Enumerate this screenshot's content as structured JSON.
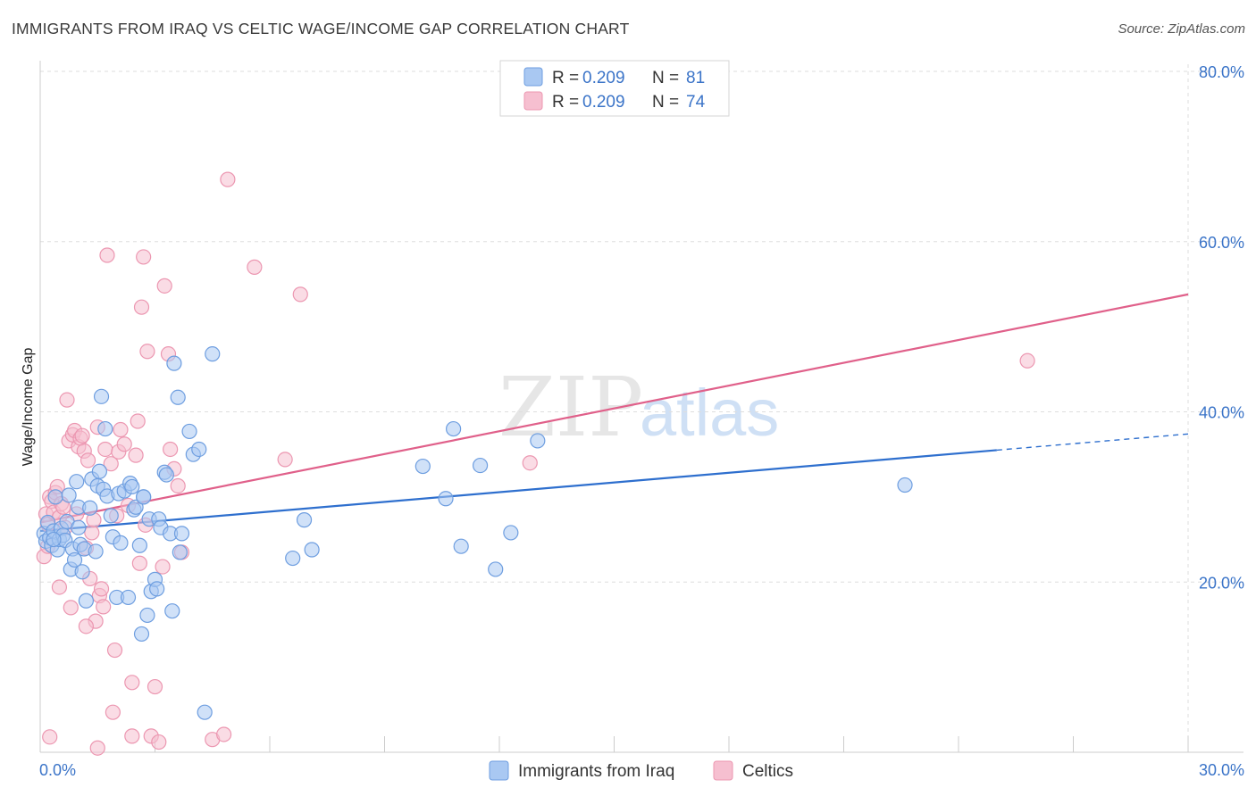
{
  "header": {
    "title": "IMMIGRANTS FROM IRAQ VS CELTIC WAGE/INCOME GAP CORRELATION CHART",
    "source": "Source: ZipAtlas.com"
  },
  "watermark": {
    "zip": "ZIP",
    "atlas": "atlas"
  },
  "legend": {
    "r_label": "R =",
    "n_label": "N =",
    "entries": [
      {
        "r": "0.209",
        "n": "81"
      },
      {
        "r": "0.209",
        "n": "74"
      }
    ]
  },
  "colors": {
    "iraq_fill": "#a9c8f2",
    "iraq_stroke": "#6e9ee0",
    "iraq_line": "#2e6fce",
    "celtic_fill": "#f6bfd0",
    "celtic_stroke": "#ec97b1",
    "celtic_line": "#e0608a",
    "tick_text": "#3b74c8",
    "grid": "#dedede"
  },
  "chart_data": {
    "type": "scatter",
    "title": "IMMIGRANTS FROM IRAQ VS CELTIC WAGE/INCOME GAP CORRELATION CHART",
    "xlabel": "",
    "ylabel": "Wage/Income Gap",
    "xlim": [
      0,
      30
    ],
    "ylim": [
      0,
      80
    ],
    "x_tick_labels": [
      "0.0%",
      "30.0%"
    ],
    "y_ticks": [
      20,
      40,
      60,
      80
    ],
    "y_tick_labels": [
      "20.0%",
      "40.0%",
      "60.0%",
      "80.0%"
    ],
    "grid": true,
    "legend_position": "top-center",
    "series": [
      {
        "name": "Immigrants from Iraq",
        "trend": {
          "x": [
            0,
            25,
            30
          ],
          "y": [
            26.0,
            35.5,
            37.4
          ],
          "dashed_from": 25
        },
        "points": [
          [
            0.1,
            25.7
          ],
          [
            0.15,
            24.8
          ],
          [
            0.2,
            27.0
          ],
          [
            0.25,
            25.2
          ],
          [
            0.3,
            24.3
          ],
          [
            0.35,
            26.0
          ],
          [
            0.4,
            30.0
          ],
          [
            0.45,
            23.8
          ],
          [
            0.5,
            25.0
          ],
          [
            0.55,
            26.3
          ],
          [
            0.6,
            25.5
          ],
          [
            0.65,
            24.9
          ],
          [
            0.7,
            27.1
          ],
          [
            0.75,
            30.2
          ],
          [
            0.8,
            21.5
          ],
          [
            0.85,
            23.9
          ],
          [
            0.9,
            22.6
          ],
          [
            0.95,
            31.8
          ],
          [
            1.0,
            28.8
          ],
          [
            1.05,
            24.4
          ],
          [
            1.1,
            21.2
          ],
          [
            1.15,
            23.9
          ],
          [
            1.2,
            17.8
          ],
          [
            1.3,
            28.7
          ],
          [
            1.35,
            32.1
          ],
          [
            1.45,
            23.6
          ],
          [
            1.5,
            31.3
          ],
          [
            1.55,
            33.0
          ],
          [
            1.6,
            41.8
          ],
          [
            1.65,
            30.9
          ],
          [
            1.7,
            38.0
          ],
          [
            1.75,
            30.1
          ],
          [
            1.85,
            27.8
          ],
          [
            1.9,
            25.3
          ],
          [
            2.0,
            18.2
          ],
          [
            2.05,
            30.4
          ],
          [
            2.1,
            24.6
          ],
          [
            2.2,
            30.7
          ],
          [
            2.3,
            18.2
          ],
          [
            2.35,
            31.6
          ],
          [
            2.4,
            31.2
          ],
          [
            2.45,
            28.5
          ],
          [
            2.5,
            28.8
          ],
          [
            2.6,
            24.3
          ],
          [
            2.65,
            13.9
          ],
          [
            2.7,
            30.0
          ],
          [
            2.8,
            16.1
          ],
          [
            2.85,
            27.4
          ],
          [
            2.9,
            18.9
          ],
          [
            3.0,
            20.3
          ],
          [
            3.05,
            19.2
          ],
          [
            3.1,
            27.4
          ],
          [
            3.15,
            26.4
          ],
          [
            3.25,
            32.9
          ],
          [
            3.3,
            32.6
          ],
          [
            3.4,
            25.7
          ],
          [
            3.45,
            16.6
          ],
          [
            3.5,
            45.7
          ],
          [
            3.6,
            41.7
          ],
          [
            3.65,
            23.5
          ],
          [
            3.7,
            25.7
          ],
          [
            3.9,
            37.7
          ],
          [
            4.0,
            35.0
          ],
          [
            4.15,
            35.6
          ],
          [
            4.5,
            46.8
          ],
          [
            4.3,
            4.7
          ],
          [
            6.6,
            22.8
          ],
          [
            6.9,
            27.3
          ],
          [
            7.1,
            23.8
          ],
          [
            10.0,
            33.6
          ],
          [
            10.6,
            29.8
          ],
          [
            10.8,
            38.0
          ],
          [
            11.0,
            24.2
          ],
          [
            11.5,
            33.7
          ],
          [
            11.9,
            21.5
          ],
          [
            12.3,
            25.8
          ],
          [
            13.0,
            36.6
          ],
          [
            22.6,
            31.4
          ],
          [
            1.0,
            26.4
          ],
          [
            2.7,
            30.0
          ],
          [
            0.35,
            25.0
          ]
        ]
      },
      {
        "name": "Celtics",
        "trend": {
          "x": [
            0,
            30
          ],
          "y": [
            27.0,
            53.8
          ],
          "dashed_from": null
        },
        "points": [
          [
            0.1,
            23.0
          ],
          [
            0.15,
            28.0
          ],
          [
            0.2,
            26.8
          ],
          [
            0.25,
            30.0
          ],
          [
            0.3,
            29.5
          ],
          [
            0.35,
            28.2
          ],
          [
            0.4,
            30.5
          ],
          [
            0.45,
            31.2
          ],
          [
            0.5,
            27.6
          ],
          [
            0.55,
            29.2
          ],
          [
            0.6,
            28.8
          ],
          [
            0.65,
            26.4
          ],
          [
            0.7,
            41.4
          ],
          [
            0.75,
            36.6
          ],
          [
            0.8,
            17.0
          ],
          [
            0.85,
            37.3
          ],
          [
            0.9,
            37.8
          ],
          [
            0.95,
            28.0
          ],
          [
            1.0,
            35.9
          ],
          [
            1.05,
            36.9
          ],
          [
            1.1,
            37.2
          ],
          [
            1.15,
            35.4
          ],
          [
            1.2,
            24.0
          ],
          [
            1.25,
            34.3
          ],
          [
            1.3,
            20.4
          ],
          [
            1.35,
            25.8
          ],
          [
            1.4,
            27.3
          ],
          [
            1.45,
            15.4
          ],
          [
            1.5,
            38.2
          ],
          [
            1.55,
            18.4
          ],
          [
            1.6,
            19.2
          ],
          [
            1.65,
            17.1
          ],
          [
            1.7,
            35.6
          ],
          [
            1.75,
            58.4
          ],
          [
            1.85,
            33.9
          ],
          [
            1.9,
            4.7
          ],
          [
            1.95,
            12.0
          ],
          [
            2.0,
            27.8
          ],
          [
            2.05,
            35.3
          ],
          [
            2.1,
            37.9
          ],
          [
            2.2,
            36.2
          ],
          [
            2.3,
            29.0
          ],
          [
            2.4,
            8.2
          ],
          [
            2.5,
            34.9
          ],
          [
            2.55,
            38.9
          ],
          [
            2.6,
            22.2
          ],
          [
            2.65,
            52.3
          ],
          [
            2.7,
            58.2
          ],
          [
            2.75,
            26.7
          ],
          [
            2.8,
            47.1
          ],
          [
            2.9,
            1.9
          ],
          [
            3.0,
            7.7
          ],
          [
            3.1,
            1.2
          ],
          [
            3.2,
            21.8
          ],
          [
            3.25,
            54.8
          ],
          [
            3.35,
            46.8
          ],
          [
            3.4,
            35.6
          ],
          [
            3.5,
            33.3
          ],
          [
            3.6,
            31.3
          ],
          [
            3.7,
            23.5
          ],
          [
            4.5,
            1.5
          ],
          [
            4.8,
            2.1
          ],
          [
            4.9,
            67.3
          ],
          [
            5.6,
            57.0
          ],
          [
            6.4,
            34.4
          ],
          [
            6.8,
            53.8
          ],
          [
            12.8,
            34.0
          ],
          [
            25.8,
            46.0
          ],
          [
            0.2,
            24.2
          ],
          [
            0.25,
            1.8
          ],
          [
            0.5,
            19.4
          ],
          [
            1.5,
            0.5
          ],
          [
            2.4,
            1.9
          ],
          [
            1.2,
            14.8
          ]
        ]
      }
    ]
  },
  "bottom_legend": {
    "items": [
      "Immigrants from Iraq",
      "Celtics"
    ]
  }
}
